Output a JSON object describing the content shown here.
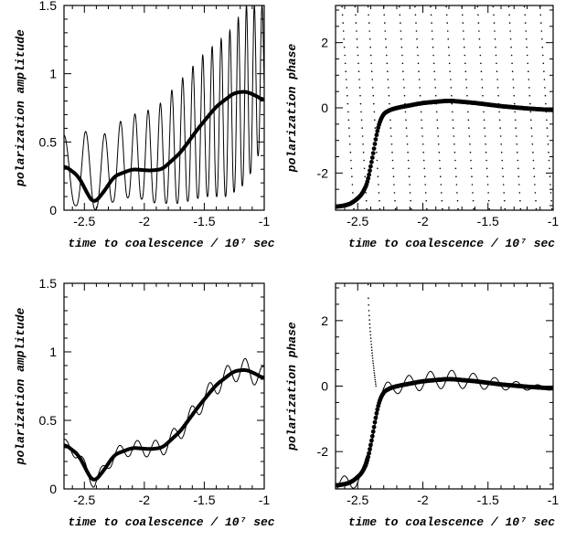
{
  "chart_data": [
    {
      "type": "line",
      "xlabel": "time to coalescence / 10⁷ sec",
      "ylabel": "polarization amplitude",
      "xlim": [
        -2.67,
        -1.0
      ],
      "ylim": [
        0,
        1.5
      ],
      "xticks": [
        "-2.5",
        "-2",
        "-1.5",
        "-1"
      ],
      "yticks": [
        "0",
        "0.5",
        "1",
        "1.5"
      ],
      "series": [
        {
          "style": "thick",
          "x": [
            -2.67,
            -2.55,
            -2.45,
            -2.42,
            -2.35,
            -2.25,
            -2.1,
            -1.95,
            -1.85,
            -1.7,
            -1.55,
            -1.4,
            -1.25,
            -1.15,
            -1.05,
            -1.0
          ],
          "y": [
            0.33,
            0.25,
            0.08,
            0.05,
            0.12,
            0.25,
            0.3,
            0.29,
            0.3,
            0.42,
            0.6,
            0.76,
            0.86,
            0.87,
            0.83,
            0.8
          ]
        },
        {
          "style": "thin-oscillating",
          "oscillating": true,
          "x": [
            -2.67,
            -2.5,
            -2.42,
            -2.3,
            -2.1,
            -1.9,
            -1.7,
            -1.5,
            -1.3,
            -1.15,
            -1.05,
            -1.0
          ],
          "envelope_low": [
            0.05,
            0.02,
            0.0,
            0.05,
            0.1,
            0.05,
            0.05,
            0.1,
            0.1,
            0.2,
            0.4,
            0.7
          ],
          "envelope_high": [
            0.55,
            0.6,
            0.45,
            0.6,
            0.7,
            0.75,
            0.95,
            1.15,
            1.3,
            1.5,
            1.5,
            1.5
          ]
        }
      ]
    },
    {
      "type": "line",
      "xlabel": "time to coalescence / 10⁷ sec",
      "ylabel": "polarization phase",
      "xlim": [
        -2.67,
        -1.0
      ],
      "ylim": [
        -3.14,
        3.14
      ],
      "xticks": [
        "-2.5",
        "-2",
        "-1.5",
        "-1"
      ],
      "yticks": [
        "-2",
        "0",
        "2"
      ],
      "series": [
        {
          "style": "thick-dots",
          "x": [
            -2.67,
            -2.55,
            -2.45,
            -2.4,
            -2.37,
            -2.33,
            -2.28,
            -2.2,
            -2.0,
            -1.8,
            -1.6,
            -1.4,
            -1.2,
            -1.0
          ],
          "y": [
            -3.05,
            -2.95,
            -2.6,
            -2.0,
            -1.0,
            -0.3,
            -0.1,
            0.0,
            0.15,
            0.22,
            0.15,
            0.05,
            -0.02,
            -0.07
          ]
        },
        {
          "style": "fine-dots-wrapping",
          "wrapping": true
        }
      ]
    },
    {
      "type": "line",
      "xlabel": "time to coalescence / 10⁷ sec",
      "ylabel": "polarization amplitude",
      "xlim": [
        -2.67,
        -1.0
      ],
      "ylim": [
        0,
        1.5
      ],
      "xticks": [
        "-2.5",
        "-2",
        "-1.5",
        "-1"
      ],
      "yticks": [
        "0",
        "0.5",
        "1",
        "1.5"
      ],
      "series": [
        {
          "style": "thick",
          "x": [
            -2.67,
            -2.55,
            -2.45,
            -2.42,
            -2.35,
            -2.25,
            -2.1,
            -1.95,
            -1.85,
            -1.7,
            -1.55,
            -1.4,
            -1.25,
            -1.15,
            -1.05,
            -1.0
          ],
          "y": [
            0.33,
            0.25,
            0.08,
            0.05,
            0.12,
            0.25,
            0.3,
            0.29,
            0.3,
            0.42,
            0.6,
            0.76,
            0.86,
            0.87,
            0.83,
            0.8
          ]
        },
        {
          "style": "thin-small-wiggle",
          "oscillating": true
        }
      ]
    },
    {
      "type": "line",
      "xlabel": "time to coalescence / 10⁷ sec",
      "ylabel": "polarization phase",
      "xlim": [
        -2.67,
        -1.0
      ],
      "ylim": [
        -3.14,
        3.14
      ],
      "xticks": [
        "-2.5",
        "-2",
        "-1.5",
        "-1"
      ],
      "yticks": [
        "-2",
        "0",
        "2"
      ],
      "series": [
        {
          "style": "thick-dots",
          "x": [
            -2.67,
            -2.55,
            -2.45,
            -2.4,
            -2.37,
            -2.33,
            -2.28,
            -2.2,
            -2.0,
            -1.8,
            -1.6,
            -1.4,
            -1.2,
            -1.0
          ],
          "y": [
            -3.05,
            -2.95,
            -2.6,
            -2.0,
            -1.0,
            -0.3,
            -0.1,
            0.0,
            0.15,
            0.22,
            0.15,
            0.05,
            -0.02,
            -0.07
          ]
        },
        {
          "style": "thin-wiggle",
          "oscillating": true
        }
      ]
    }
  ]
}
